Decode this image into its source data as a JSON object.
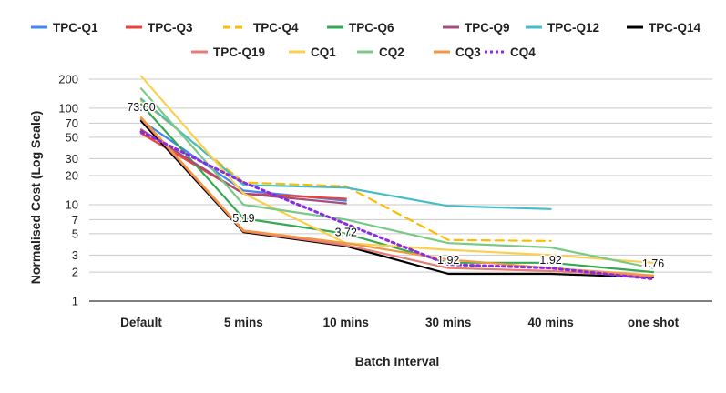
{
  "chart_data": {
    "type": "line",
    "title": "",
    "xlabel": "Batch Interval",
    "ylabel": "Normalised Cost (Log Scale)",
    "yscale": "log",
    "ylim": [
      1,
      200
    ],
    "yticks": [
      1,
      2,
      3,
      5,
      7,
      10,
      20,
      30,
      50,
      70,
      100,
      200
    ],
    "grid": true,
    "legend_position": "top",
    "categories": [
      "Default",
      "5 mins",
      "10 mins",
      "30 mins",
      "40 mins",
      "one shot"
    ],
    "series": [
      {
        "name": "TPC-Q1",
        "color": "#4285f4",
        "dash": "solid",
        "values": [
          75,
          14,
          11,
          null,
          null,
          null
        ]
      },
      {
        "name": "TPC-Q3",
        "color": "#ea4335",
        "dash": "solid",
        "values": [
          55,
          13,
          11.5,
          null,
          null,
          null
        ]
      },
      {
        "name": "TPC-Q4",
        "color": "#fbbc04",
        "dash": "dashed",
        "values": [
          120,
          17,
          15.5,
          4.3,
          4.2,
          null
        ]
      },
      {
        "name": "TPC-Q6",
        "color": "#34a853",
        "dash": "solid",
        "values": [
          110,
          7.2,
          5,
          2.5,
          2.5,
          2.0
        ]
      },
      {
        "name": "TPC-Q9",
        "color": "#a64d79",
        "dash": "solid",
        "values": [
          60,
          13,
          10.3,
          null,
          null,
          null
        ]
      },
      {
        "name": "TPC-Q12",
        "color": "#46bdc6",
        "dash": "solid",
        "values": [
          125,
          16,
          15,
          9.7,
          9,
          null
        ]
      },
      {
        "name": "TPC-Q14",
        "color": "#000000",
        "dash": "solid",
        "values": [
          73.6,
          5.19,
          3.72,
          1.92,
          1.92,
          1.76
        ]
      },
      {
        "name": "TPC-Q19",
        "color": "#e67c73",
        "dash": "solid",
        "values": [
          78,
          5.3,
          3.8,
          2.2,
          2.05,
          1.8
        ]
      },
      {
        "name": "CQ1",
        "color": "#fcd04f",
        "dash": "solid",
        "values": [
          215,
          13,
          4,
          3.4,
          3,
          2.5
        ]
      },
      {
        "name": "CQ2",
        "color": "#7bc987",
        "dash": "solid",
        "values": [
          160,
          10,
          7,
          4,
          3.6,
          2.2
        ]
      },
      {
        "name": "CQ3",
        "color": "#f6963f",
        "dash": "solid",
        "values": [
          80,
          5.4,
          4,
          2.7,
          2.2,
          1.85
        ]
      },
      {
        "name": "CQ4",
        "color": "#8a2be2",
        "dash": "dotted",
        "values": [
          57,
          17,
          6.3,
          2.4,
          2.2,
          1.7
        ]
      }
    ],
    "annotations": [
      {
        "text": "73.60",
        "category": "Default",
        "value": 73.6
      },
      {
        "text": "5.19",
        "category": "5 mins",
        "value": 5.19
      },
      {
        "text": "3.72",
        "category": "10 mins",
        "value": 3.72
      },
      {
        "text": "1.92",
        "category": "30 mins",
        "value": 1.92
      },
      {
        "text": "1.92",
        "category": "40 mins",
        "value": 1.92
      },
      {
        "text": "1.76",
        "category": "one shot",
        "value": 1.76
      }
    ]
  }
}
